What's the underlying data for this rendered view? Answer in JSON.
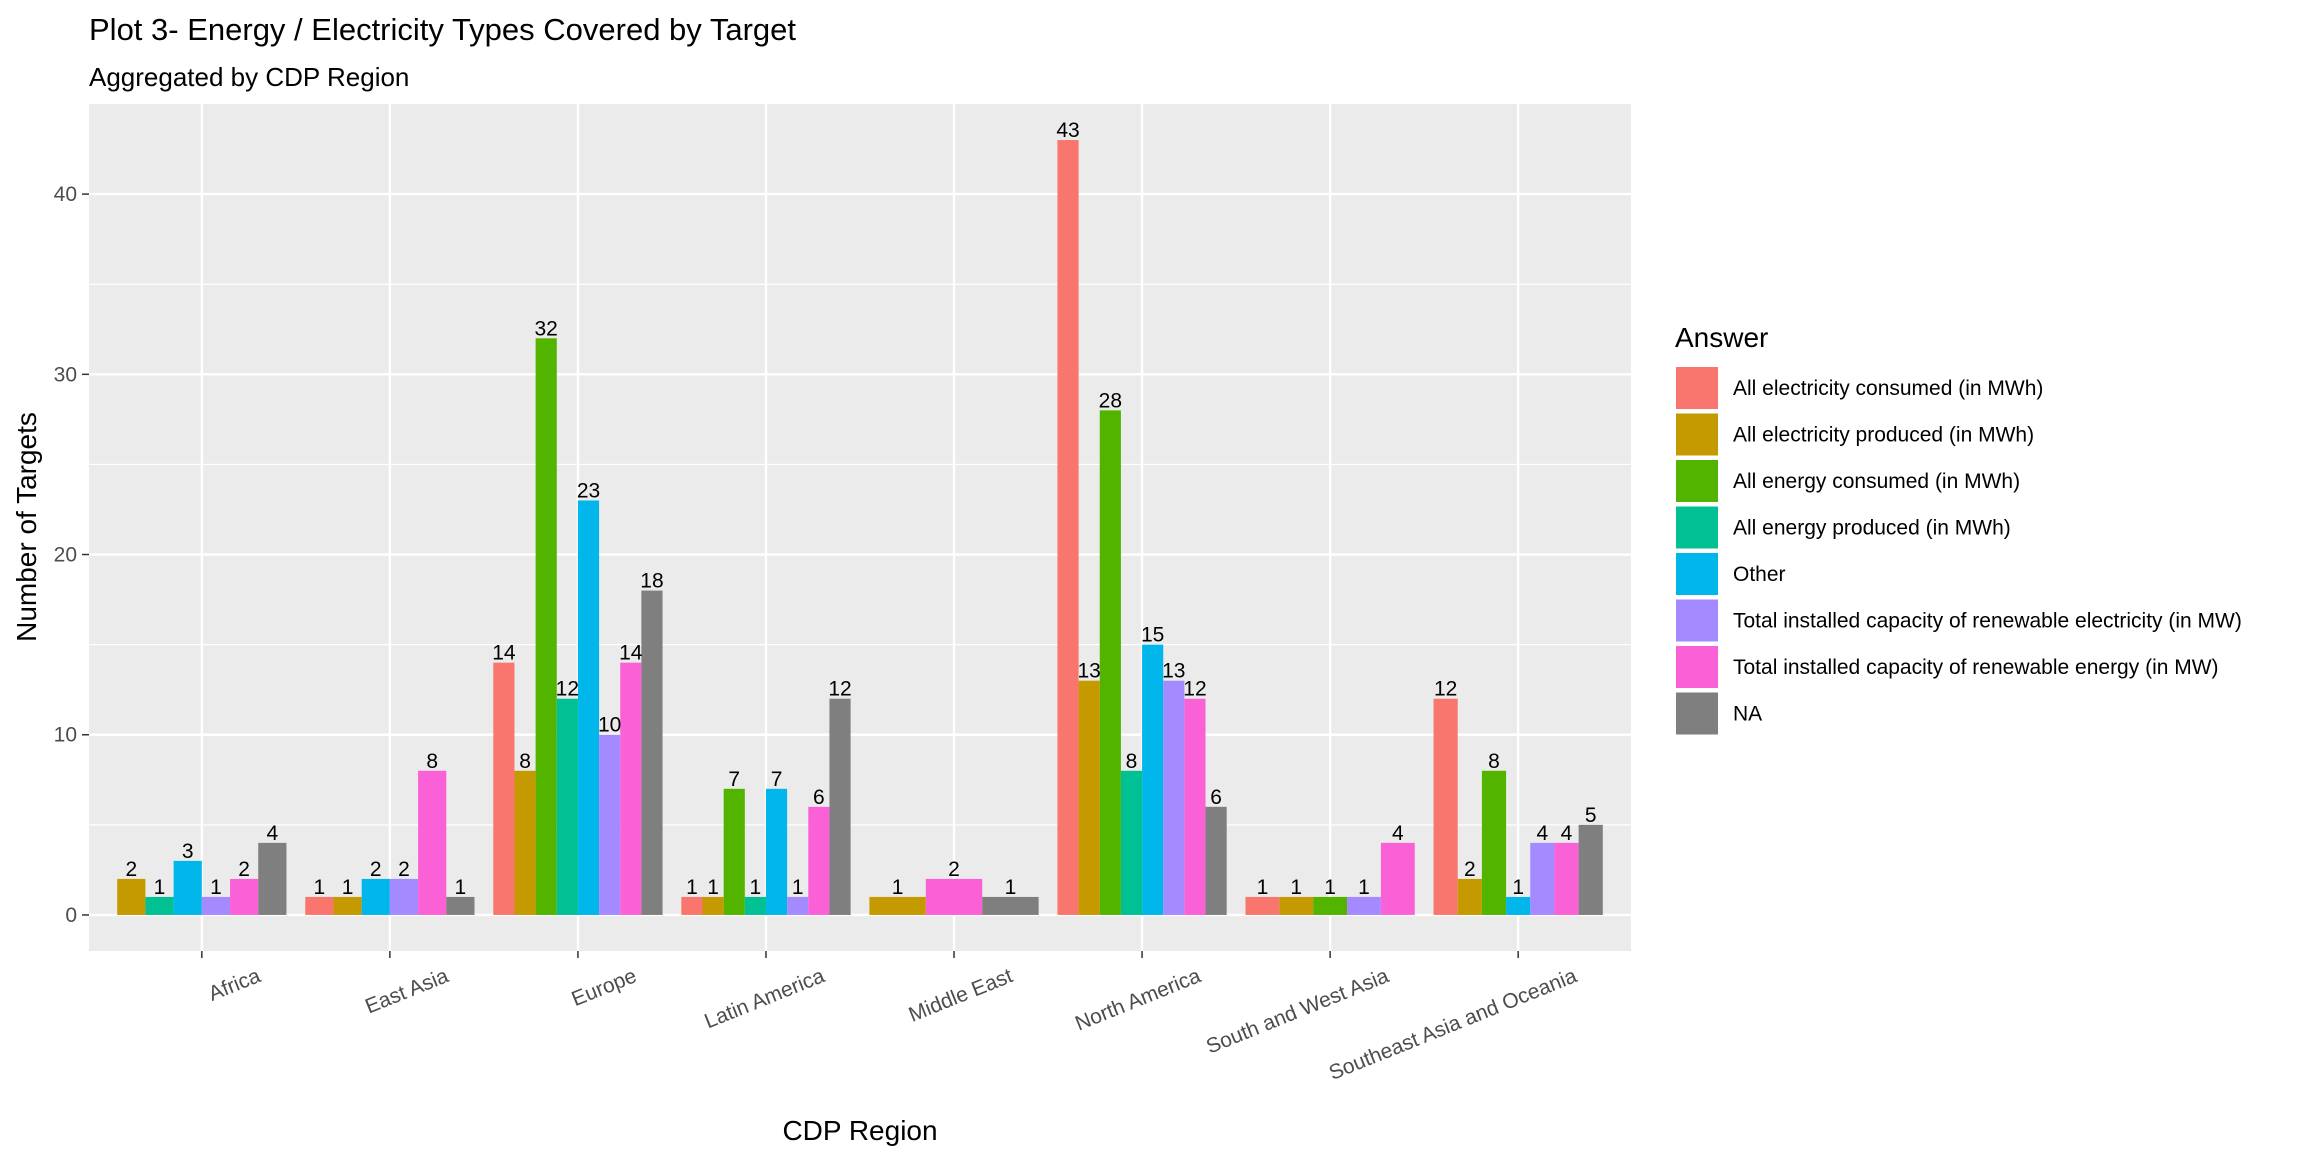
{
  "chart_data": {
    "type": "bar",
    "title": "Plot 3- Energy / Electricity Types Covered by Target",
    "subtitle": "Aggregated by CDP Region",
    "xlabel": "CDP Region",
    "ylabel": "Number of Targets",
    "ylim": [
      -2,
      45
    ],
    "yticks": [
      0,
      10,
      20,
      30,
      40
    ],
    "grid": true,
    "legend": {
      "title": "Answer",
      "position": "right"
    },
    "categories": [
      "Africa",
      "East Asia",
      "Europe",
      "Latin America",
      "Middle East",
      "North America",
      "South and West Asia",
      "Southeast Asia and Oceania"
    ],
    "series": [
      {
        "name": "All electricity consumed (in MWh)",
        "color": "#F8766D"
      },
      {
        "name": "All electricity produced (in MWh)",
        "color": "#C49A00"
      },
      {
        "name": "All energy consumed (in MWh)",
        "color": "#53B400"
      },
      {
        "name": "All energy produced (in MWh)",
        "color": "#00C094"
      },
      {
        "name": "Other",
        "color": "#00B6EB"
      },
      {
        "name": "Total installed capacity of renewable electricity (in MW)",
        "color": "#A58AFF"
      },
      {
        "name": "Total installed capacity of renewable energy (in MW)",
        "color": "#FB61D7"
      },
      {
        "name": "NA",
        "color": "#7F7F7F"
      }
    ],
    "groups": [
      {
        "category": "Africa",
        "bars": [
          {
            "series": 1,
            "value": 2
          },
          {
            "series": 3,
            "value": 1
          },
          {
            "series": 4,
            "value": 3
          },
          {
            "series": 5,
            "value": 1
          },
          {
            "series": 6,
            "value": 2
          },
          {
            "series": 7,
            "value": 4
          }
        ]
      },
      {
        "category": "East Asia",
        "bars": [
          {
            "series": 0,
            "value": 1
          },
          {
            "series": 1,
            "value": 1
          },
          {
            "series": 4,
            "value": 2
          },
          {
            "series": 5,
            "value": 2
          },
          {
            "series": 6,
            "value": 8
          },
          {
            "series": 7,
            "value": 1
          }
        ]
      },
      {
        "category": "Europe",
        "bars": [
          {
            "series": 0,
            "value": 14
          },
          {
            "series": 1,
            "value": 8
          },
          {
            "series": 2,
            "value": 32
          },
          {
            "series": 3,
            "value": 12
          },
          {
            "series": 4,
            "value": 23
          },
          {
            "series": 5,
            "value": 10
          },
          {
            "series": 6,
            "value": 14
          },
          {
            "series": 7,
            "value": 18
          }
        ]
      },
      {
        "category": "Latin America",
        "bars": [
          {
            "series": 0,
            "value": 1
          },
          {
            "series": 1,
            "value": 1
          },
          {
            "series": 2,
            "value": 7
          },
          {
            "series": 3,
            "value": 1
          },
          {
            "series": 4,
            "value": 7
          },
          {
            "series": 5,
            "value": 1
          },
          {
            "series": 6,
            "value": 6
          },
          {
            "series": 7,
            "value": 12
          }
        ]
      },
      {
        "category": "Middle East",
        "bars": [
          {
            "series": 1,
            "value": 1
          },
          {
            "series": 6,
            "value": 2
          },
          {
            "series": 7,
            "value": 1
          }
        ]
      },
      {
        "category": "North America",
        "bars": [
          {
            "series": 0,
            "value": 43
          },
          {
            "series": 1,
            "value": 13
          },
          {
            "series": 2,
            "value": 28
          },
          {
            "series": 3,
            "value": 8
          },
          {
            "series": 4,
            "value": 15
          },
          {
            "series": 5,
            "value": 13
          },
          {
            "series": 6,
            "value": 12
          },
          {
            "series": 7,
            "value": 6
          }
        ]
      },
      {
        "category": "South and West Asia",
        "bars": [
          {
            "series": 0,
            "value": 1
          },
          {
            "series": 1,
            "value": 1
          },
          {
            "series": 2,
            "value": 1
          },
          {
            "series": 5,
            "value": 1
          },
          {
            "series": 6,
            "value": 4
          }
        ]
      },
      {
        "category": "Southeast Asia and Oceania",
        "bars": [
          {
            "series": 0,
            "value": 12
          },
          {
            "series": 1,
            "value": 2
          },
          {
            "series": 2,
            "value": 8
          },
          {
            "series": 4,
            "value": 1
          },
          {
            "series": 5,
            "value": 4
          },
          {
            "series": 6,
            "value": 4
          },
          {
            "series": 7,
            "value": 5
          }
        ]
      }
    ]
  }
}
